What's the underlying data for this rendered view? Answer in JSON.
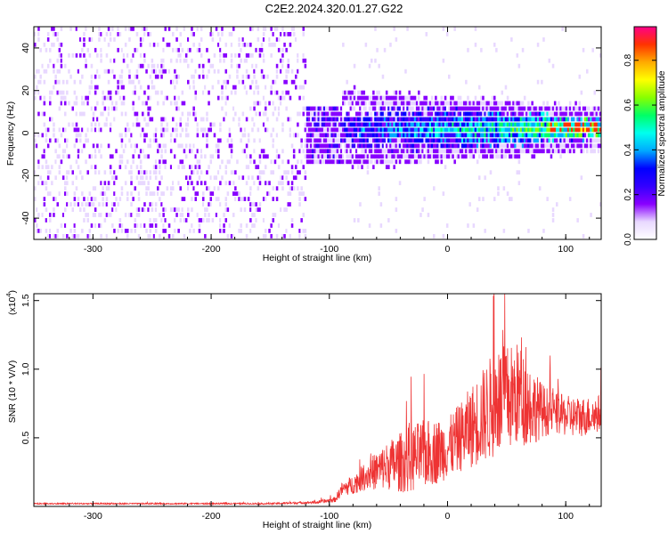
{
  "figure": {
    "title": "C2E2.2024.320.01.27.G22"
  },
  "chart_data": [
    {
      "type": "heatmap",
      "xlabel": "Height of straight line (km)",
      "ylabel": "Frequency (Hz)",
      "xlim": [
        -350,
        130
      ],
      "ylim": [
        -50,
        50
      ],
      "xticks": [
        -300,
        -200,
        -100,
        0,
        100
      ],
      "yticks": [
        -40,
        -20,
        0,
        20,
        40
      ],
      "colorbar": {
        "label": "Normalized spectral amplitude",
        "range": [
          0.0,
          0.95
        ],
        "ticks": [
          "0.0",
          "0.2",
          "0.4",
          "0.6",
          "0.8"
        ],
        "colors": [
          "#ffffff",
          "#e8d8ff",
          "#8800ff",
          "#3300ff",
          "#0000ff",
          "#00aaff",
          "#00ffee",
          "#00ff66",
          "#88ff00",
          "#ffff00",
          "#ffaa00",
          "#ff3300",
          "#ff0088"
        ]
      },
      "regions": [
        {
          "x_range": [
            -350,
            -120
          ],
          "frequency_range": [
            -50,
            50
          ],
          "amplitude": "low, broadband noise (purple)"
        },
        {
          "x_range": [
            -120,
            -90
          ],
          "frequency_range": [
            -15,
            10
          ],
          "amplitude": "low-medium"
        },
        {
          "x_range": [
            -90,
            130
          ],
          "frequency_center": 0,
          "frequency_halfwidth": [
            12,
            4
          ],
          "amplitude": "medium-high, peaks near 0.9 at x>80"
        }
      ],
      "grid": false
    },
    {
      "type": "line",
      "xlabel": "Height of straight line (km)",
      "ylabel": "SNR (10 * V/V)",
      "yunit_label": "(x10",
      "yunit_exp": "4",
      "yunit_close": ")",
      "xlim": [
        -350,
        130
      ],
      "ylim": [
        0,
        1.55
      ],
      "xticks": [
        -300,
        -200,
        -100,
        0,
        100
      ],
      "yticks": [
        "0.5",
        "1.0",
        "1.5"
      ],
      "color": "#ee3333",
      "series": [
        {
          "x": [
            -350,
            -300,
            -250,
            -200,
            -150,
            -110,
            -95,
            -90,
            -80,
            -70,
            -60,
            -50,
            -40,
            -30,
            -20,
            -10,
            0,
            10,
            20,
            30,
            40,
            50,
            60,
            70,
            80,
            90,
            100,
            110,
            120,
            130
          ],
          "values": [
            0.02,
            0.02,
            0.02,
            0.02,
            0.02,
            0.03,
            0.05,
            0.12,
            0.16,
            0.22,
            0.26,
            0.3,
            0.32,
            0.35,
            0.38,
            0.4,
            0.42,
            0.5,
            0.58,
            0.66,
            0.75,
            0.78,
            0.82,
            0.74,
            0.7,
            0.68,
            0.66,
            0.65,
            0.66,
            0.68
          ],
          "spread": [
            0.005,
            0.005,
            0.005,
            0.005,
            0.006,
            0.01,
            0.02,
            0.05,
            0.07,
            0.1,
            0.14,
            0.18,
            0.22,
            0.25,
            0.25,
            0.24,
            0.22,
            0.25,
            0.3,
            0.35,
            0.4,
            0.4,
            0.38,
            0.3,
            0.2,
            0.15,
            0.15,
            0.15,
            0.14,
            0.14
          ]
        }
      ]
    }
  ]
}
